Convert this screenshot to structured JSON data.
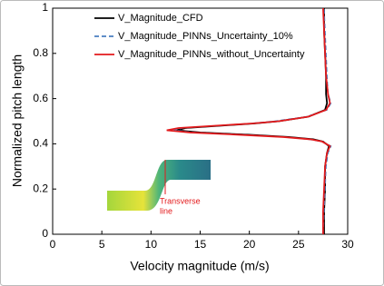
{
  "chart_data": {
    "type": "line",
    "xlabel": "Velocity magnitude (m/s)",
    "ylabel": "Normalized pitch length",
    "xlim": [
      0,
      30
    ],
    "xticks": [
      0,
      5,
      10,
      15,
      20,
      25,
      30
    ],
    "ylim": [
      0,
      1
    ],
    "yticks": [
      0,
      0.2,
      0.4,
      0.6,
      0.8,
      1
    ],
    "legend": "upper left",
    "annotation": [
      "Transverse",
      "line"
    ],
    "y": [
      0,
      0.1,
      0.2,
      0.3,
      0.36,
      0.39,
      0.41,
      0.42,
      0.43,
      0.44,
      0.45,
      0.46,
      0.47,
      0.48,
      0.49,
      0.5,
      0.52,
      0.55,
      0.58,
      0.62,
      0.7,
      0.8,
      0.9,
      1
    ],
    "series": [
      {
        "name": "V_Magnitude_CFD",
        "color": "#000000",
        "dash": "solid",
        "values": [
          27.6,
          27.6,
          27.7,
          27.7,
          27.9,
          28.1,
          27.5,
          26.5,
          24,
          20,
          15,
          12.6,
          13.5,
          17,
          20.5,
          23,
          26,
          27.7,
          27.9,
          27.8,
          27.8,
          27.7,
          27.6,
          27.6
        ]
      },
      {
        "name": "V_Magnitude_PINNs_Uncertainty_10%",
        "color": "#4a7fc1",
        "dash": "dashed",
        "values": [
          27.5,
          27.6,
          27.7,
          27.8,
          28,
          28.3,
          27.4,
          26,
          23.5,
          19.5,
          14.5,
          12.3,
          13.2,
          16.5,
          20,
          22.5,
          25.8,
          27.9,
          28.3,
          28,
          27.9,
          27.8,
          27.7,
          27.6
        ]
      },
      {
        "name": "V_Magnitude_PINNs_without_Uncertainty",
        "color": "#e31a1c",
        "dash": "solid",
        "values": [
          27.5,
          27.5,
          27.6,
          27.7,
          27.9,
          28.2,
          27.4,
          26.2,
          23.5,
          19,
          14,
          11.6,
          12.8,
          16.5,
          20.3,
          23,
          26,
          27.8,
          28.2,
          28,
          27.8,
          27.7,
          27.6,
          27.5
        ]
      }
    ]
  }
}
